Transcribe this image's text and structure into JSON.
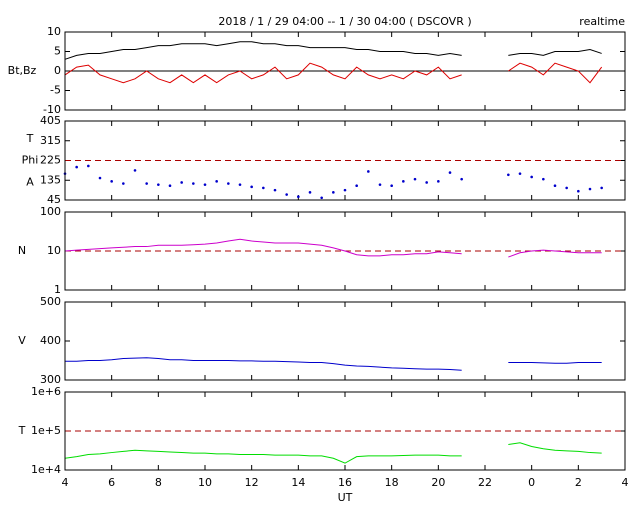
{
  "chart_data": [
    {
      "type": "line",
      "title": "2018 / 1 / 29   04:00 -- 1 / 30  04:00 ( DSCOVR )",
      "annotation": "realtime",
      "ylabel": "Bt,Bz",
      "x": [
        4,
        4.5,
        5,
        5.5,
        6,
        6.5,
        7,
        7.5,
        8,
        8.5,
        9,
        9.5,
        10,
        10.5,
        11,
        11.5,
        12,
        12.5,
        13,
        13.5,
        14,
        14.5,
        15,
        15.5,
        16,
        16.5,
        17,
        17.5,
        18,
        18.5,
        19,
        19.5,
        20,
        20.5,
        21,
        21.5,
        22,
        22.5,
        23,
        23.5,
        24,
        24.5,
        25,
        25.5,
        26,
        26.5,
        27,
        27.5,
        28
      ],
      "xlim": [
        4,
        28
      ],
      "ylim": [
        -10,
        10
      ],
      "yticks": [
        10,
        5,
        0,
        -5,
        -10
      ],
      "reference_line": {
        "value": 0,
        "color": "#000000",
        "dashed": false
      },
      "series": [
        {
          "color": "#000000",
          "values": [
            3,
            4,
            4.5,
            4.5,
            5,
            5.5,
            5.5,
            6,
            6.5,
            6.5,
            7,
            7,
            7,
            6.5,
            7,
            7.5,
            7.5,
            7,
            7,
            6.5,
            6.5,
            6,
            6,
            6,
            6,
            5.5,
            5.5,
            5,
            5,
            5,
            4.5,
            4.5,
            4,
            4.5,
            4,
            null,
            null,
            null,
            4,
            4.5,
            4.5,
            4,
            5,
            5,
            5,
            5.5,
            4.5,
            null,
            null
          ]
        },
        {
          "color": "#dd0000",
          "values": [
            -1,
            1,
            1.5,
            -1,
            -2,
            -3,
            -2,
            0,
            -2,
            -3,
            -1,
            -3,
            -1,
            -3,
            -1,
            0,
            -2,
            -1,
            1,
            -2,
            -1,
            2,
            1,
            -1,
            -2,
            1,
            -1,
            -2,
            -1,
            -2,
            0,
            -1,
            1,
            -2,
            -1,
            null,
            null,
            null,
            0,
            2,
            1,
            -1,
            2,
            1,
            0,
            -3,
            1,
            null,
            null
          ]
        }
      ]
    },
    {
      "type": "scatter",
      "ylabel": [
        "T",
        "Phi",
        "A"
      ],
      "x": [
        4,
        4.5,
        5,
        5.5,
        6,
        6.5,
        7,
        7.5,
        8,
        8.5,
        9,
        9.5,
        10,
        10.5,
        11,
        11.5,
        12,
        12.5,
        13,
        13.5,
        14,
        14.5,
        15,
        15.5,
        16,
        16.5,
        17,
        17.5,
        18,
        18.5,
        19,
        19.5,
        20,
        20.5,
        21,
        21.5,
        22,
        22.5,
        23,
        23.5,
        24,
        24.5,
        25,
        25.5,
        26,
        26.5,
        27,
        27.5,
        28
      ],
      "xlim": [
        4,
        28
      ],
      "ylim": [
        45,
        405
      ],
      "yticks": [
        405,
        315,
        225,
        135,
        45
      ],
      "reference_line": {
        "value": 225,
        "color": "#aa0000",
        "dashed": true
      },
      "series": [
        {
          "color": "#0000cc",
          "values": [
            165,
            195,
            200,
            145,
            130,
            120,
            180,
            120,
            115,
            110,
            125,
            120,
            115,
            130,
            120,
            115,
            105,
            100,
            90,
            70,
            60,
            80,
            55,
            80,
            90,
            110,
            175,
            115,
            110,
            130,
            140,
            125,
            130,
            170,
            140,
            null,
            null,
            null,
            160,
            165,
            150,
            140,
            110,
            100,
            85,
            95,
            100,
            null,
            null
          ]
        }
      ]
    },
    {
      "type": "line",
      "ylabel": "N",
      "log": true,
      "x": [
        4,
        4.5,
        5,
        5.5,
        6,
        6.5,
        7,
        7.5,
        8,
        8.5,
        9,
        9.5,
        10,
        10.5,
        11,
        11.5,
        12,
        12.5,
        13,
        13.5,
        14,
        14.5,
        15,
        15.5,
        16,
        16.5,
        17,
        17.5,
        18,
        18.5,
        19,
        19.5,
        20,
        20.5,
        21,
        21.5,
        22,
        22.5,
        23,
        23.5,
        24,
        24.5,
        25,
        25.5,
        26,
        26.5,
        27,
        27.5,
        28
      ],
      "xlim": [
        4,
        28
      ],
      "ylim": [
        1,
        100
      ],
      "yticks": [
        100,
        10,
        1
      ],
      "reference_line": {
        "value": 10,
        "color": "#aa0000",
        "dashed": true
      },
      "series": [
        {
          "color": "#cc00cc",
          "values": [
            10,
            10.5,
            11,
            11.5,
            12,
            12.5,
            13,
            13,
            14,
            14,
            14,
            14.5,
            15,
            16,
            18,
            20,
            18,
            17,
            16,
            16,
            16,
            15,
            14,
            12,
            10,
            8,
            7.5,
            7.5,
            8,
            8,
            8.5,
            8.5,
            9.5,
            9,
            8.5,
            null,
            null,
            null,
            7,
            9,
            10,
            10.5,
            10,
            9.5,
            9,
            9,
            9,
            null,
            null
          ]
        }
      ]
    },
    {
      "type": "line",
      "ylabel": "V",
      "x": [
        4,
        4.5,
        5,
        5.5,
        6,
        6.5,
        7,
        7.5,
        8,
        8.5,
        9,
        9.5,
        10,
        10.5,
        11,
        11.5,
        12,
        12.5,
        13,
        13.5,
        14,
        14.5,
        15,
        15.5,
        16,
        16.5,
        17,
        17.5,
        18,
        18.5,
        19,
        19.5,
        20,
        20.5,
        21,
        21.5,
        22,
        22.5,
        23,
        23.5,
        24,
        24.5,
        25,
        25.5,
        26,
        26.5,
        27,
        27.5,
        28
      ],
      "xlim": [
        4,
        28
      ],
      "ylim": [
        300,
        500
      ],
      "yticks": [
        500,
        400,
        300
      ],
      "series": [
        {
          "color": "#0000cc",
          "values": [
            348,
            348,
            350,
            350,
            352,
            355,
            356,
            357,
            355,
            352,
            352,
            350,
            350,
            350,
            350,
            349,
            349,
            348,
            348,
            347,
            346,
            345,
            345,
            342,
            338,
            336,
            335,
            333,
            331,
            330,
            329,
            328,
            328,
            327,
            325,
            null,
            null,
            null,
            345,
            345,
            345,
            344,
            343,
            343,
            345,
            345,
            345,
            null,
            null
          ]
        }
      ]
    },
    {
      "type": "line",
      "ylabel": "T",
      "log": true,
      "xlabel": "UT",
      "x": [
        4,
        4.5,
        5,
        5.5,
        6,
        6.5,
        7,
        7.5,
        8,
        8.5,
        9,
        9.5,
        10,
        10.5,
        11,
        11.5,
        12,
        12.5,
        13,
        13.5,
        14,
        14.5,
        15,
        15.5,
        16,
        16.5,
        17,
        17.5,
        18,
        18.5,
        19,
        19.5,
        20,
        20.5,
        21,
        21.5,
        22,
        22.5,
        23,
        23.5,
        24,
        24.5,
        25,
        25.5,
        26,
        26.5,
        27,
        27.5,
        28
      ],
      "xlim": [
        4,
        28
      ],
      "ylim": [
        10000,
        1000000
      ],
      "yticks": [
        {
          "value": 1000000,
          "label": "1e+6"
        },
        {
          "value": 100000,
          "label": "1e+5"
        },
        {
          "value": 10000,
          "label": "1e+4"
        }
      ],
      "xticks": [
        4,
        6,
        8,
        10,
        12,
        14,
        16,
        18,
        20,
        22,
        {
          "value": 24,
          "label": "0"
        },
        {
          "value": 26,
          "label": "2"
        },
        {
          "value": 28,
          "label": "4"
        }
      ],
      "reference_line": {
        "value": 100000,
        "color": "#aa0000",
        "dashed": true
      },
      "series": [
        {
          "color": "#00dd00",
          "values": [
            20000,
            22000,
            25000,
            26000,
            28000,
            30000,
            32000,
            31000,
            30000,
            29000,
            28000,
            27000,
            27000,
            26000,
            26000,
            25000,
            25000,
            25000,
            24000,
            24000,
            24000,
            23000,
            23000,
            20000,
            15000,
            22000,
            23000,
            23000,
            23000,
            23500,
            24000,
            24000,
            24000,
            23000,
            23000,
            null,
            null,
            null,
            45000,
            50000,
            40000,
            35000,
            32000,
            31000,
            30000,
            28000,
            27000,
            null,
            null
          ]
        }
      ]
    }
  ]
}
